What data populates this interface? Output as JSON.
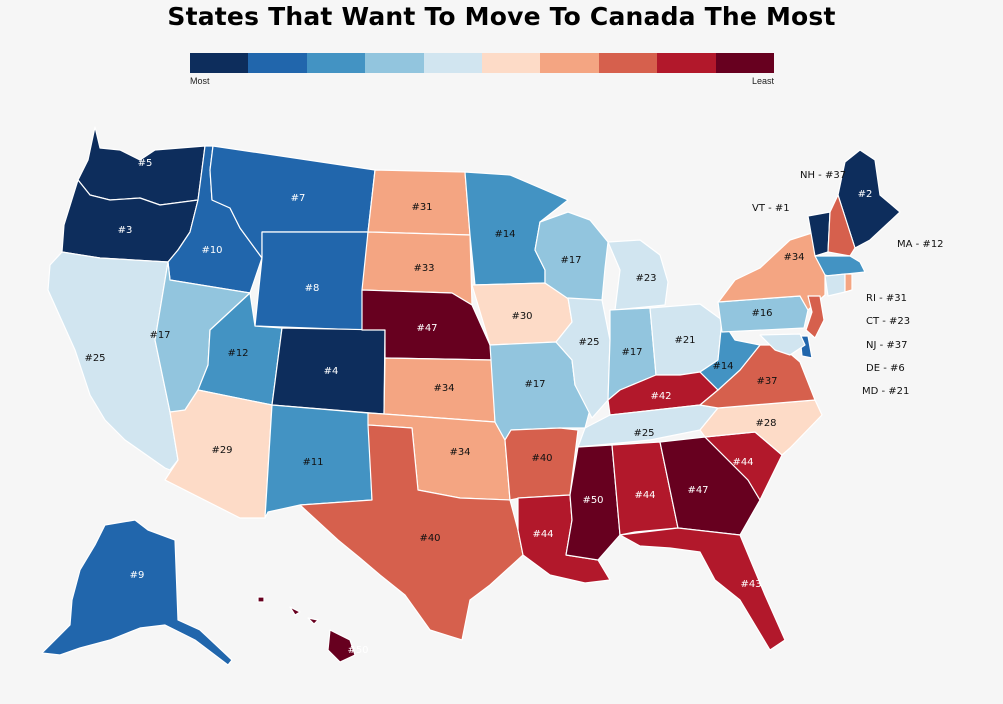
{
  "title": "States That Want To Move To Canada The Most",
  "legend": {
    "low_label": "Most",
    "high_label": "Least",
    "colors": [
      "#0d2d5c",
      "#2166ac",
      "#4393c3",
      "#92c5de",
      "#d1e5f0",
      "#fddbc7",
      "#f4a582",
      "#d6604d",
      "#b2182b",
      "#67001f"
    ]
  },
  "states": [
    {
      "abbr": "WA",
      "label": "#5"
    },
    {
      "abbr": "OR",
      "label": "#3"
    },
    {
      "abbr": "CA",
      "label": "#25"
    },
    {
      "abbr": "ID",
      "label": "#10"
    },
    {
      "abbr": "NV",
      "label": "#17"
    },
    {
      "abbr": "MT",
      "label": "#7"
    },
    {
      "abbr": "WY",
      "label": "#8"
    },
    {
      "abbr": "UT",
      "label": "#12"
    },
    {
      "abbr": "AZ",
      "label": "#29"
    },
    {
      "abbr": "CO",
      "label": "#4"
    },
    {
      "abbr": "NM",
      "label": "#11"
    },
    {
      "abbr": "ND",
      "label": "#31"
    },
    {
      "abbr": "SD",
      "label": "#33"
    },
    {
      "abbr": "NE",
      "label": "#47"
    },
    {
      "abbr": "KS",
      "label": "#34"
    },
    {
      "abbr": "OK",
      "label": "#34"
    },
    {
      "abbr": "TX",
      "label": "#40"
    },
    {
      "abbr": "MN",
      "label": "#14"
    },
    {
      "abbr": "IA",
      "label": "#30"
    },
    {
      "abbr": "MO",
      "label": "#17"
    },
    {
      "abbr": "AR",
      "label": "#40"
    },
    {
      "abbr": "LA",
      "label": "#44"
    },
    {
      "abbr": "WI",
      "label": "#17"
    },
    {
      "abbr": "IL",
      "label": "#25"
    },
    {
      "abbr": "MI",
      "label": "#23"
    },
    {
      "abbr": "IN",
      "label": "#17"
    },
    {
      "abbr": "OH",
      "label": "#21"
    },
    {
      "abbr": "KY",
      "label": "#42"
    },
    {
      "abbr": "TN",
      "label": "#25"
    },
    {
      "abbr": "MS",
      "label": "#50"
    },
    {
      "abbr": "AL",
      "label": "#44"
    },
    {
      "abbr": "GA",
      "label": "#47"
    },
    {
      "abbr": "FL",
      "label": "#43"
    },
    {
      "abbr": "SC",
      "label": "#44"
    },
    {
      "abbr": "NC",
      "label": "#28"
    },
    {
      "abbr": "VA",
      "label": "#37"
    },
    {
      "abbr": "WV",
      "label": "#14"
    },
    {
      "abbr": "PA",
      "label": "#16"
    },
    {
      "abbr": "NY",
      "label": "#34"
    },
    {
      "abbr": "ME",
      "label": "#2"
    },
    {
      "abbr": "AK",
      "label": "#9"
    },
    {
      "abbr": "HI",
      "label": "#50"
    },
    {
      "abbr": "VT",
      "label": ""
    },
    {
      "abbr": "NH",
      "label": ""
    },
    {
      "abbr": "MA",
      "label": ""
    },
    {
      "abbr": "CT",
      "label": ""
    },
    {
      "abbr": "RI",
      "label": ""
    },
    {
      "abbr": "NJ",
      "label": ""
    },
    {
      "abbr": "DE",
      "label": ""
    },
    {
      "abbr": "MD",
      "label": ""
    }
  ],
  "side_labels": {
    "nh": "NH - #37",
    "vt": "VT - #1",
    "ma": "MA - #12",
    "ri": "RI - #31",
    "ct": "CT - #23",
    "nj": "NJ - #37",
    "de": "DE - #6",
    "md": "MD - #21"
  }
}
